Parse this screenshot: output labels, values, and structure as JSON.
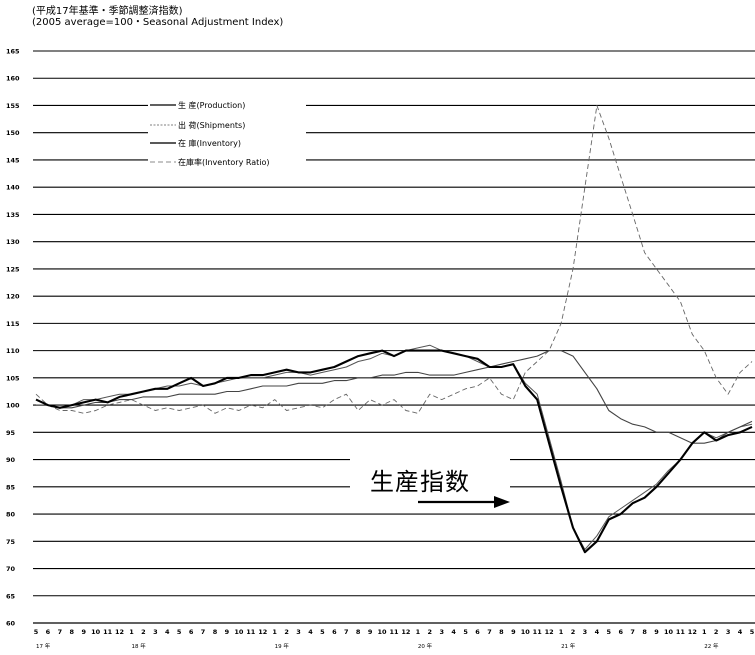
{
  "header": {
    "line1": "(平成17年基準・季節調整済指数)",
    "line2": "(2005 average=100・Seasonal Adjustment Index)"
  },
  "annotation": {
    "text": "生産指数"
  },
  "legend": {
    "production": "生 産(Production)",
    "shipments": "出 荷(Shipments)",
    "inventory": "在 庫(Inventory)",
    "inventory_ratio": "在庫率(Inventory Ratio)"
  },
  "chart_data": {
    "type": "line",
    "ylim": [
      60,
      165
    ],
    "ytick_labels": [
      "60",
      "65",
      "70",
      "75",
      "80",
      "85",
      "90",
      "95",
      "100",
      "105",
      "110",
      "115",
      "120",
      "125",
      "130",
      "135",
      "140",
      "145",
      "150",
      "155",
      "160",
      "165"
    ],
    "month_labels": [
      "5",
      "6",
      "7",
      "8",
      "9",
      "10",
      "11",
      "12",
      "1",
      "2",
      "3",
      "4",
      "5",
      "6",
      "7",
      "8",
      "9",
      "10",
      "11",
      "12",
      "1",
      "2",
      "3",
      "4",
      "5",
      "6",
      "7",
      "8",
      "9",
      "10",
      "11",
      "12",
      "1",
      "2",
      "3",
      "4",
      "5",
      "6",
      "7",
      "8",
      "9",
      "10",
      "11",
      "12",
      "1",
      "2",
      "3",
      "4",
      "5",
      "6",
      "7",
      "8",
      "9",
      "10",
      "11",
      "12",
      "1",
      "2",
      "3",
      "4",
      "5"
    ],
    "year_labels": [
      {
        "text": "17 年",
        "at": 0
      },
      {
        "text": "18 年",
        "at": 8
      },
      {
        "text": "19 年",
        "at": 20
      },
      {
        "text": "20 年",
        "at": 32
      },
      {
        "text": "21 年",
        "at": 44
      },
      {
        "text": "22 年",
        "at": 56
      }
    ],
    "series": [
      {
        "key": "production",
        "name": "生 産(Production)",
        "color": "#000000",
        "style": "solid-thick",
        "values": [
          101,
          100,
          99.5,
          100,
          100.5,
          101,
          100.5,
          101.5,
          102,
          102.5,
          103,
          103,
          104,
          105,
          103.5,
          104,
          105,
          105,
          105.5,
          105.5,
          106,
          106.5,
          106,
          106,
          106.5,
          107,
          108,
          109,
          109.5,
          110,
          109,
          110,
          110,
          110,
          110,
          109.5,
          109,
          108.5,
          107,
          107,
          107.5,
          103.5,
          101,
          93,
          85,
          77.5,
          73,
          75,
          79,
          80,
          82,
          83,
          85,
          87.5,
          90,
          93,
          95,
          93.5,
          94.5,
          95,
          96
        ]
      },
      {
        "key": "shipments",
        "name": "出 荷(Shipments)",
        "color": "#555555",
        "style": "solid-thin",
        "values": [
          100,
          100,
          99.5,
          100,
          101,
          101,
          101.5,
          102,
          102,
          102.5,
          103,
          103.5,
          103.5,
          104,
          103.5,
          104,
          104.5,
          105,
          105,
          105,
          105.5,
          106,
          106,
          105.5,
          106,
          106.5,
          107,
          108,
          108.5,
          109.5,
          109,
          110,
          110.5,
          111,
          110,
          109.5,
          109,
          108,
          107,
          107,
          107.5,
          104,
          102,
          94,
          86,
          77.5,
          73.5,
          76,
          79.5,
          81,
          82.5,
          84,
          85.5,
          88,
          90,
          93,
          95,
          94,
          95,
          96,
          96.5
        ]
      },
      {
        "key": "inventory",
        "name": "在 庫(Inventory)",
        "color": "#444444",
        "style": "solid-medium",
        "values": [
          100,
          100,
          99.5,
          99.5,
          100,
          100.5,
          100.5,
          101,
          101,
          101.5,
          101.5,
          101.5,
          102,
          102,
          102,
          102,
          102.5,
          102.5,
          103,
          103.5,
          103.5,
          103.5,
          104,
          104,
          104,
          104.5,
          104.5,
          105,
          105,
          105.5,
          105.5,
          106,
          106,
          105.5,
          105.5,
          105.5,
          106,
          106.5,
          107,
          107.5,
          108,
          108.5,
          109,
          110,
          110,
          109,
          106,
          103,
          99,
          97.5,
          96.5,
          96,
          95,
          95,
          94,
          93,
          93,
          93.5,
          95,
          96,
          97
        ]
      },
      {
        "key": "inventory_ratio",
        "name": "在庫率(Inventory Ratio)",
        "color": "#666666",
        "style": "dashed",
        "values": [
          102,
          100,
          99,
          99,
          98.5,
          99,
          100,
          100.5,
          101,
          100,
          99,
          99.5,
          99,
          99.5,
          100,
          98.5,
          99.5,
          99,
          100,
          99.5,
          101,
          99,
          99.5,
          100,
          99.5,
          101,
          102,
          99,
          101,
          100,
          101,
          99,
          98.5,
          102,
          101,
          102,
          103,
          103.5,
          105,
          102,
          101,
          106,
          108,
          110,
          115,
          125,
          140,
          155,
          149,
          142,
          135,
          128,
          125,
          122,
          119,
          113,
          110,
          105,
          102,
          106,
          108
        ]
      }
    ]
  }
}
